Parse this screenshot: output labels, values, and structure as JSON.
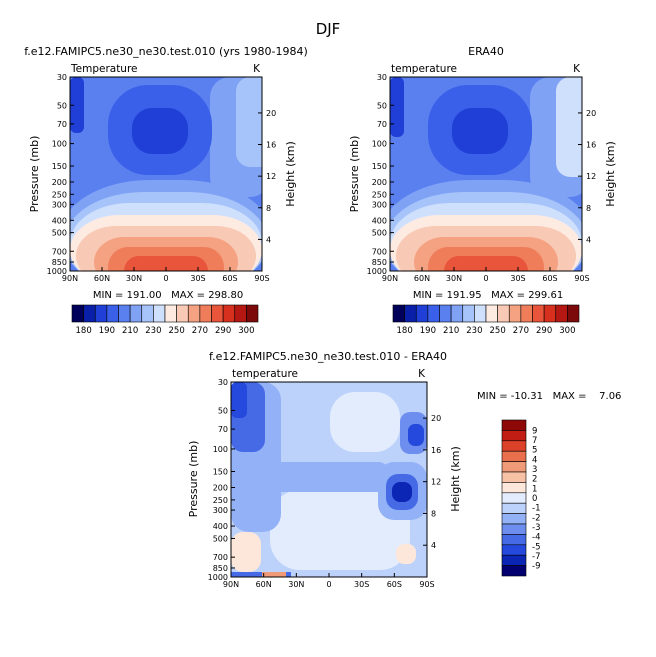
{
  "page": {
    "title": "DJF"
  },
  "chart_data": [
    {
      "type": "heatmap",
      "id": "model",
      "title": "f.e12.FAMIPC5.ne30_ne30.test.010 (yrs 1980-1984)",
      "variable": "Temperature",
      "units": "K",
      "ylabel": "Pressure (mb)",
      "ylabel_right": "Height (km)",
      "x_ticks": [
        "90N",
        "60N",
        "30N",
        "0",
        "30S",
        "60S",
        "90S"
      ],
      "y_ticks": [
        "30",
        "50",
        "70",
        "100",
        "150",
        "200",
        "250",
        "300",
        "400",
        "500",
        "700",
        "850",
        "1000"
      ],
      "height_ticks": [
        "20",
        "16",
        "12",
        "8",
        "4"
      ],
      "min": "191.00",
      "max": "298.80",
      "stats_text": "MIN = 191.00   MAX = 298.80",
      "colorbar_labels": [
        "180",
        "190",
        "210",
        "230",
        "250",
        "270",
        "290",
        "300"
      ]
    },
    {
      "type": "heatmap",
      "id": "obs",
      "title": "ERA40",
      "variable": "temperature",
      "units": "K",
      "ylabel": "Pressure (mb)",
      "ylabel_right": "Height (km)",
      "x_ticks": [
        "90N",
        "60N",
        "30N",
        "0",
        "30S",
        "60S",
        "90S"
      ],
      "y_ticks": [
        "30",
        "50",
        "70",
        "100",
        "150",
        "200",
        "250",
        "300",
        "400",
        "500",
        "700",
        "850",
        "1000"
      ],
      "height_ticks": [
        "20",
        "16",
        "12",
        "8",
        "4"
      ],
      "min": "191.95",
      "max": "299.61",
      "stats_text": "MIN = 191.95   MAX = 299.61",
      "colorbar_labels": [
        "180",
        "190",
        "210",
        "230",
        "250",
        "270",
        "290",
        "300"
      ]
    },
    {
      "type": "heatmap",
      "id": "diff",
      "title": "f.e12.FAMIPC5.ne30_ne30.test.010 - ERA40",
      "variable": "temperature",
      "units": "K",
      "ylabel": "Pressure (mb)",
      "ylabel_right": "Height (km)",
      "x_ticks": [
        "90N",
        "60N",
        "30N",
        "0",
        "30S",
        "60S",
        "90S"
      ],
      "y_ticks": [
        "30",
        "50",
        "70",
        "100",
        "150",
        "200",
        "250",
        "300",
        "400",
        "500",
        "700",
        "850",
        "1000"
      ],
      "height_ticks": [
        "20",
        "16",
        "12",
        "8",
        "4"
      ],
      "min": "-10.31",
      "max": "7.06",
      "stats_text": "MIN = -10.31   MAX =    7.06",
      "colorbar_labels": [
        "9",
        "7",
        "5",
        "4",
        "3",
        "2",
        "1",
        "0",
        "-1",
        "-2",
        "-3",
        "-4",
        "-5",
        "-7",
        "-9"
      ]
    }
  ],
  "colors": {
    "temp_scale": [
      "#00005a",
      "#0a1fa8",
      "#1f3fd6",
      "#3a5fe8",
      "#5a80f0",
      "#7fa2f5",
      "#a6c3fa",
      "#cfe0fd",
      "#fdebe2",
      "#f8c9b4",
      "#f4a282",
      "#ef7d5a",
      "#e8553a",
      "#d8301f",
      "#b51812",
      "#7d0a0a"
    ],
    "diff_scale": [
      "#020070",
      "#0b25b4",
      "#2449dc",
      "#466ae6",
      "#6d8eef",
      "#93b1f6",
      "#bdd2fb",
      "#e2ecfd",
      "#fde7db",
      "#f7c1a6",
      "#f19a78",
      "#e96f4d",
      "#dc4229",
      "#c21d15",
      "#8e0808"
    ]
  }
}
